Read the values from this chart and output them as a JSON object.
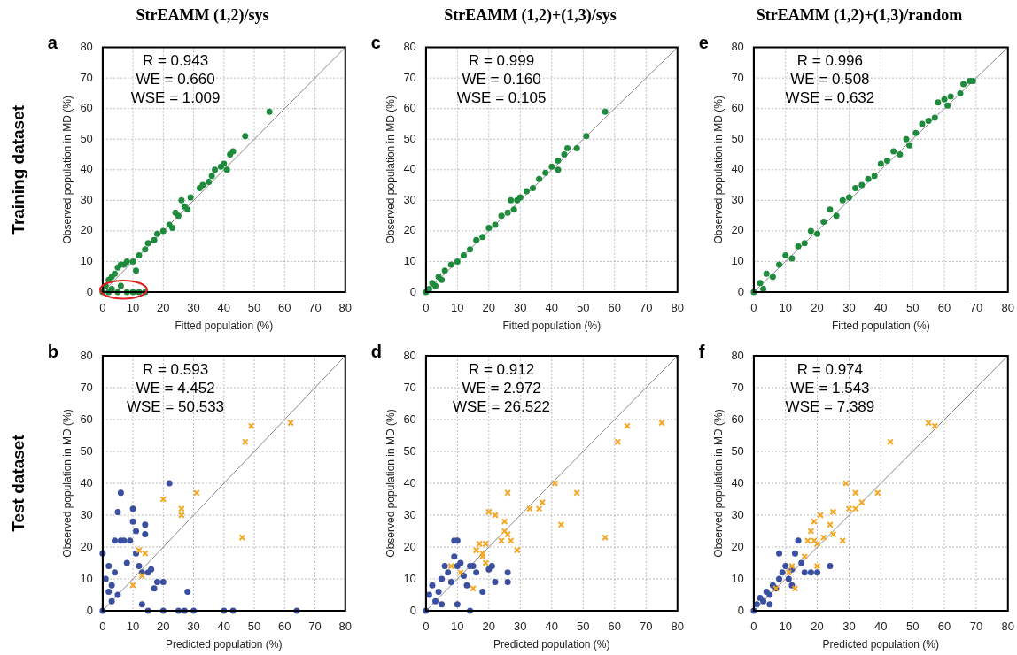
{
  "chart_data": [
    {
      "type": "scatter",
      "title": "StrEAMM (1,2)/sys",
      "xlabel": "Fitted population (%)",
      "ylabel": "Observed population in MD (%)",
      "xlim": [
        0,
        80
      ],
      "ylim": [
        0,
        80
      ],
      "xticks": [
        0,
        10,
        20,
        30,
        40,
        50,
        60,
        70,
        80
      ],
      "yticks": [
        0,
        10,
        20,
        30,
        40,
        50,
        60,
        70,
        80
      ],
      "grid": true,
      "legend": false,
      "marker": "circle",
      "annotations": [
        "a",
        "R = 0.943",
        "WE = 0.660",
        "WSE = 1.009",
        "Training dataset"
      ],
      "series": [
        {
          "color": "#1e8a3c",
          "x": [
            0,
            1,
            2,
            3,
            4,
            5,
            6,
            7,
            8,
            10,
            11,
            12,
            14,
            15,
            17,
            18,
            20,
            22,
            23,
            24,
            25,
            26,
            27,
            28,
            29,
            32,
            33,
            35,
            36,
            37,
            39,
            40,
            41,
            42,
            43,
            47,
            55,
            2,
            5,
            8,
            10,
            12,
            14,
            3,
            6
          ],
          "values": [
            0,
            2,
            4,
            5,
            6,
            8,
            9,
            9,
            10,
            10,
            7,
            12,
            14,
            16,
            17,
            19,
            20,
            22,
            21,
            26,
            25,
            30,
            28,
            27,
            31,
            34,
            35,
            36,
            38,
            40,
            41,
            42,
            40,
            45,
            46,
            51,
            59,
            0,
            0,
            0,
            0,
            0,
            0,
            1,
            2
          ]
        },
        {
          "type": "line",
          "color": "#888888",
          "marker": "none",
          "x": [
            0,
            80
          ],
          "values": [
            0,
            80
          ]
        }
      ]
    },
    {
      "type": "scatter",
      "title": "StrEAMM (1,2)+(1,3)/sys",
      "xlabel": "Fitted population (%)",
      "ylabel": "Observed population in MD (%)",
      "xlim": [
        0,
        80
      ],
      "ylim": [
        0,
        80
      ],
      "xticks": [
        0,
        10,
        20,
        30,
        40,
        50,
        60,
        70,
        80
      ],
      "yticks": [
        0,
        10,
        20,
        30,
        40,
        50,
        60,
        70,
        80
      ],
      "grid": true,
      "legend": false,
      "marker": "circle",
      "annotations": [
        "c",
        "R = 0.999",
        "WE = 0.160",
        "WSE = 0.105"
      ],
      "series": [
        {
          "color": "#1e8a3c",
          "x": [
            0,
            1,
            2,
            3,
            4,
            5,
            6,
            8,
            10,
            12,
            14,
            16,
            18,
            20,
            22,
            24,
            26,
            27,
            28,
            29,
            30,
            32,
            34,
            36,
            38,
            40,
            42,
            42,
            44,
            45,
            48,
            51,
            57
          ],
          "values": [
            0,
            1,
            3,
            2,
            5,
            4,
            7,
            9,
            10,
            12,
            14,
            17,
            18,
            21,
            22,
            25,
            26,
            30,
            27,
            30,
            31,
            33,
            34,
            37,
            39,
            41,
            40,
            43,
            45,
            47,
            47,
            51,
            59
          ]
        },
        {
          "type": "line",
          "color": "#888888",
          "marker": "none",
          "x": [
            0,
            80
          ],
          "values": [
            0,
            80
          ]
        }
      ]
    },
    {
      "type": "scatter",
      "title": "StrEAMM (1,2)+(1,3)/random",
      "xlabel": "Fitted population (%)",
      "ylabel": "Observed population in MD (%)",
      "xlim": [
        0,
        80
      ],
      "ylim": [
        0,
        80
      ],
      "xticks": [
        0,
        10,
        20,
        30,
        40,
        50,
        60,
        70,
        80
      ],
      "yticks": [
        0,
        10,
        20,
        30,
        40,
        50,
        60,
        70,
        80
      ],
      "grid": true,
      "legend": false,
      "marker": "circle",
      "annotations": [
        "e",
        "R = 0.996",
        "WE = 0.508",
        "WSE = 0.632"
      ],
      "series": [
        {
          "color": "#1e8a3c",
          "x": [
            0,
            2,
            3,
            4,
            6,
            8,
            10,
            12,
            14,
            16,
            18,
            20,
            22,
            24,
            26,
            28,
            30,
            32,
            34,
            36,
            38,
            40,
            42,
            44,
            46,
            48,
            49,
            51,
            53,
            55,
            57,
            58,
            60,
            61,
            62,
            65,
            66,
            68,
            69
          ],
          "values": [
            0,
            3,
            1,
            6,
            5,
            9,
            12,
            11,
            15,
            16,
            20,
            19,
            23,
            27,
            25,
            30,
            31,
            34,
            35,
            37,
            38,
            42,
            43,
            46,
            45,
            50,
            48,
            52,
            55,
            56,
            57,
            62,
            63,
            61,
            64,
            65,
            68,
            69,
            69
          ]
        },
        {
          "type": "line",
          "color": "#888888",
          "marker": "none",
          "x": [
            0,
            80
          ],
          "values": [
            0,
            80
          ]
        }
      ]
    },
    {
      "type": "scatter",
      "xlabel": "Predicted population (%)",
      "ylabel": "Observed population in MD (%)",
      "xlim": [
        0,
        80
      ],
      "ylim": [
        0,
        80
      ],
      "xticks": [
        0,
        10,
        20,
        30,
        40,
        50,
        60,
        70,
        80
      ],
      "yticks": [
        0,
        10,
        20,
        30,
        40,
        50,
        60,
        70,
        80
      ],
      "grid": true,
      "legend": false,
      "marker": "circle",
      "annotations": [
        "b",
        "R = 0.593",
        "WE = 4.452",
        "WSE = 50.533",
        "Test dataset"
      ],
      "series": [
        {
          "color": "#3a4fa0",
          "x": [
            0,
            0,
            1,
            2,
            3,
            4,
            4,
            5,
            6,
            6,
            7,
            8,
            9,
            10,
            10,
            11,
            11,
            12,
            13,
            14,
            14,
            15,
            16,
            17,
            18,
            20,
            22,
            28,
            13,
            15,
            20,
            25,
            27,
            30,
            40,
            43,
            64,
            5,
            3,
            2
          ],
          "values": [
            0,
            18,
            10,
            14,
            8,
            12,
            22,
            31,
            37,
            22,
            22,
            15,
            22,
            28,
            32,
            18,
            25,
            14,
            12,
            27,
            24,
            12,
            13,
            7,
            9,
            9,
            40,
            6,
            2,
            0,
            0,
            0,
            0,
            0,
            0,
            0,
            0,
            5,
            3,
            6
          ]
        },
        {
          "color": "#f5a623",
          "marker": "cross",
          "x": [
            10,
            12,
            14,
            13,
            20,
            26,
            26,
            31,
            46,
            47,
            49,
            62
          ],
          "values": [
            8,
            19,
            18,
            11,
            35,
            32,
            30,
            37,
            23,
            53,
            58,
            59
          ]
        },
        {
          "type": "line",
          "color": "#888888",
          "marker": "none",
          "x": [
            0,
            80
          ],
          "values": [
            0,
            80
          ]
        }
      ]
    },
    {
      "type": "scatter",
      "xlabel": "Predicted population (%)",
      "ylabel": "Observed population in MD (%)",
      "xlim": [
        0,
        80
      ],
      "ylim": [
        0,
        80
      ],
      "xticks": [
        0,
        10,
        20,
        30,
        40,
        50,
        60,
        70,
        80
      ],
      "yticks": [
        0,
        10,
        20,
        30,
        40,
        50,
        60,
        70,
        80
      ],
      "grid": true,
      "legend": false,
      "marker": "circle",
      "annotations": [
        "d",
        "R = 0.912",
        "WE = 2.972",
        "WSE = 26.522"
      ],
      "series": [
        {
          "color": "#3a4fa0",
          "x": [
            0,
            1,
            2,
            3,
            4,
            5,
            6,
            7,
            8,
            9,
            9,
            10,
            10,
            11,
            12,
            13,
            14,
            15,
            16,
            18,
            20,
            21,
            22,
            26,
            26,
            10,
            14,
            5
          ],
          "values": [
            0,
            5,
            8,
            3,
            6,
            10,
            14,
            12,
            9,
            22,
            17,
            22,
            14,
            15,
            11,
            8,
            14,
            14,
            12,
            6,
            13,
            14,
            9,
            12,
            9,
            2,
            0,
            2
          ]
        },
        {
          "color": "#f5a623",
          "marker": "cross",
          "x": [
            8,
            11,
            15,
            16,
            17,
            18,
            18,
            19,
            19,
            20,
            22,
            24,
            25,
            25,
            26,
            26,
            27,
            29,
            33,
            36,
            37,
            41,
            43,
            48,
            57,
            61,
            64,
            75
          ],
          "values": [
            14,
            12,
            7,
            19,
            21,
            18,
            17,
            21,
            15,
            31,
            30,
            22,
            25,
            28,
            37,
            24,
            22,
            19,
            32,
            32,
            34,
            40,
            27,
            37,
            23,
            53,
            58,
            59
          ]
        },
        {
          "type": "line",
          "color": "#888888",
          "marker": "none",
          "x": [
            0,
            80
          ],
          "values": [
            0,
            80
          ]
        }
      ]
    },
    {
      "type": "scatter",
      "xlabel": "Predicted population (%)",
      "ylabel": "Observed population in MD (%)",
      "xlim": [
        0,
        80
      ],
      "ylim": [
        0,
        80
      ],
      "xticks": [
        0,
        10,
        20,
        30,
        40,
        50,
        60,
        70,
        80
      ],
      "yticks": [
        0,
        10,
        20,
        30,
        40,
        50,
        60,
        70,
        80
      ],
      "grid": true,
      "legend": false,
      "marker": "circle",
      "annotations": [
        "f",
        "R = 0.974",
        "WE = 1.543",
        "WSE = 7.389"
      ],
      "series": [
        {
          "color": "#3a4fa0",
          "x": [
            0,
            1,
            2,
            3,
            4,
            5,
            6,
            7,
            8,
            8,
            9,
            10,
            11,
            12,
            13,
            14,
            15,
            16,
            18,
            20,
            24,
            12,
            5
          ],
          "values": [
            0,
            2,
            4,
            3,
            6,
            5,
            8,
            7,
            10,
            18,
            12,
            14,
            10,
            13,
            18,
            22,
            15,
            12,
            12,
            12,
            14,
            8,
            2
          ]
        },
        {
          "color": "#f5a623",
          "marker": "cross",
          "x": [
            7,
            11,
            12,
            13,
            16,
            17,
            18,
            19,
            19,
            20,
            20,
            21,
            22,
            24,
            25,
            25,
            28,
            29,
            30,
            32,
            32,
            34,
            39,
            43,
            55,
            57
          ],
          "values": [
            7,
            12,
            14,
            7,
            17,
            22,
            25,
            22,
            28,
            21,
            14,
            30,
            23,
            27,
            24,
            31,
            22,
            40,
            32,
            32,
            37,
            34,
            37,
            53,
            59,
            58
          ]
        },
        {
          "type": "line",
          "color": "#888888",
          "marker": "none",
          "x": [
            0,
            80
          ],
          "values": [
            0,
            80
          ]
        }
      ]
    }
  ]
}
